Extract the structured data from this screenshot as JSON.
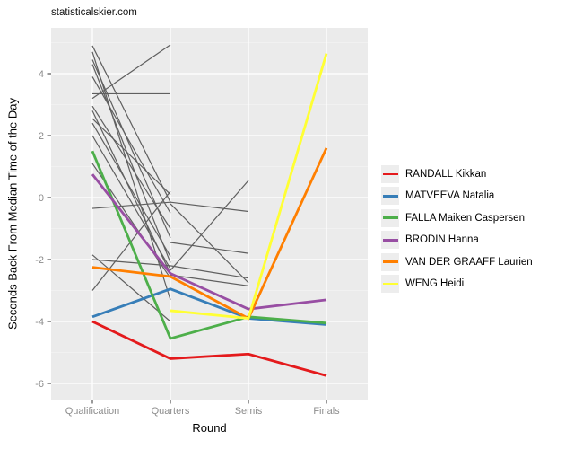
{
  "title": "statisticalskier.com",
  "chart_data": {
    "type": "line",
    "title": "statisticalskier.com",
    "xlabel": "Round",
    "ylabel": "Seconds Back From Median Time of the Day",
    "categories": [
      "Qualification",
      "Quarters",
      "Semis",
      "Finals"
    ],
    "y_ticks": [
      4,
      2,
      0,
      -2,
      -4,
      -6
    ],
    "y_minor_ticks": [
      5,
      3,
      1,
      -1,
      -3,
      -5
    ],
    "ylim": [
      -6.5,
      5.5
    ],
    "grid": true,
    "legend_position": "right",
    "panel_bg": "#ebebeb",
    "gridline_color": "#ffffff",
    "axis_text_color": "#8c8c8c",
    "tick_mark_color": "#333333",
    "series": [
      {
        "name": "RANDALL Kikkan",
        "color": "#e41a1c",
        "values": [
          -4.0,
          -5.2,
          -5.05,
          -5.75
        ]
      },
      {
        "name": "MATVEEVA Natalia",
        "color": "#377eb8",
        "values": [
          -3.85,
          -2.95,
          -3.9,
          -4.1
        ]
      },
      {
        "name": "FALLA Maiken Caspersen",
        "color": "#4daf4a",
        "values": [
          1.5,
          -4.55,
          -3.85,
          -4.05
        ]
      },
      {
        "name": "BRODIN Hanna",
        "color": "#984ea3",
        "values": [
          0.75,
          -2.45,
          -3.6,
          -3.3
        ]
      },
      {
        "name": "VAN DER GRAAFF Laurien",
        "color": "#ff7f00",
        "values": [
          -2.25,
          -2.55,
          -3.9,
          1.6
        ]
      },
      {
        "name": "WENG Heidi",
        "color": "#ffff33",
        "values": [
          null,
          -3.65,
          -3.9,
          4.65
        ]
      }
    ],
    "other_series": {
      "name": "other-athletes",
      "color": "#5f5f5f",
      "lines": [
        [
          4.9,
          -0.15,
          null,
          null
        ],
        [
          4.45,
          -1.3,
          null,
          null
        ],
        [
          4.3,
          -2.1,
          null,
          null
        ],
        [
          4.7,
          -3.3,
          null,
          null
        ],
        [
          3.9,
          -0.5,
          null,
          null
        ],
        [
          3.35,
          3.35,
          null,
          null
        ],
        [
          3.2,
          4.93,
          null,
          null
        ],
        [
          2.95,
          -1.0,
          null,
          null
        ],
        [
          2.8,
          -2.45,
          null,
          null
        ],
        [
          2.55,
          0.1,
          null,
          null
        ],
        [
          2.4,
          -1.9,
          null,
          null
        ],
        [
          2.0,
          -2.3,
          null,
          null
        ],
        [
          1.1,
          -2.6,
          null,
          null
        ],
        [
          -0.35,
          -0.15,
          -0.45,
          null
        ],
        [
          -1.85,
          -4.0,
          null,
          null
        ],
        [
          -2.0,
          -2.2,
          null,
          null
        ],
        [
          -3.0,
          0.2,
          null,
          null
        ],
        [
          null,
          -0.2,
          -2.75,
          null
        ],
        [
          null,
          -2.35,
          0.55,
          null
        ],
        [
          null,
          -2.5,
          -2.85,
          null
        ],
        [
          null,
          -1.45,
          -1.8,
          null
        ],
        [
          null,
          -2.2,
          -2.6,
          null
        ]
      ]
    }
  }
}
